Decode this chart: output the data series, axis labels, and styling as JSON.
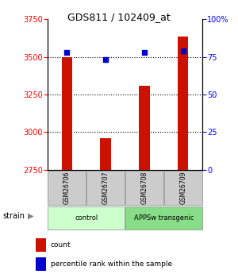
{
  "title": "GDS811 / 102409_at",
  "samples": [
    "GSM26706",
    "GSM26707",
    "GSM26708",
    "GSM26709"
  ],
  "counts": [
    3500,
    2960,
    3310,
    3635
  ],
  "percentiles": [
    78,
    73,
    78,
    79
  ],
  "ylim_left": [
    2750,
    3750
  ],
  "ylim_right": [
    0,
    100
  ],
  "yticks_left": [
    2750,
    3000,
    3250,
    3500,
    3750
  ],
  "yticks_right": [
    0,
    25,
    50,
    75,
    100
  ],
  "group_defs": [
    {
      "label": "control",
      "color": "#ccffcc",
      "start": 0,
      "end": 1
    },
    {
      "label": "APPSw transgenic",
      "color": "#88dd88",
      "start": 2,
      "end": 3
    }
  ],
  "bar_color": "#cc1100",
  "dot_color": "#0000cc",
  "label_bg": "#cccccc",
  "strain_label": "strain",
  "legend_items": [
    {
      "color": "#cc1100",
      "label": "count"
    },
    {
      "color": "#0000cc",
      "label": "percentile rank within the sample"
    }
  ]
}
